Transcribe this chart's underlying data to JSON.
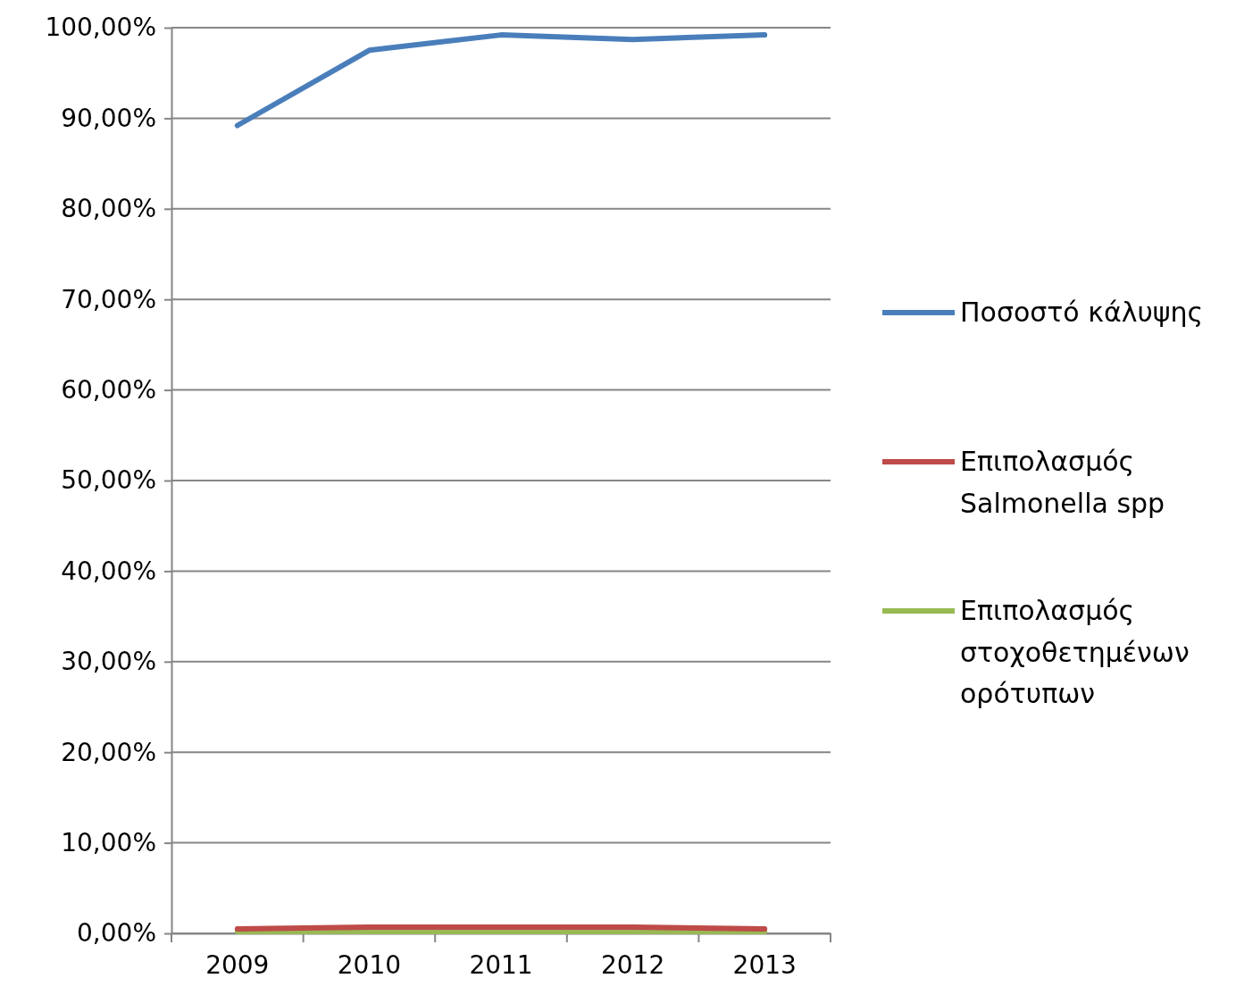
{
  "chart_data": {
    "type": "line",
    "categories": [
      "2009",
      "2010",
      "2011",
      "2012",
      "2013"
    ],
    "series": [
      {
        "name": "Ποσοστό κάλυψης",
        "color": "#4a7ebb",
        "values": [
          89.2,
          97.5,
          99.2,
          98.7,
          99.2
        ]
      },
      {
        "name": "Επιπολασμός Salmonella spp",
        "color": "#be4b48",
        "values": [
          0.5,
          0.7,
          0.7,
          0.7,
          0.5
        ]
      },
      {
        "name": "Επιπολασμός στοχοθετημένων ορότυπων",
        "color": "#98b954",
        "values": [
          0.2,
          0.2,
          0.2,
          0.2,
          0.2
        ]
      }
    ],
    "ylim": [
      0,
      100
    ],
    "yticks": [
      {
        "value": 0,
        "label": "0,00%"
      },
      {
        "value": 10,
        "label": "10,00%"
      },
      {
        "value": 20,
        "label": "20,00%"
      },
      {
        "value": 30,
        "label": "30,00%"
      },
      {
        "value": 40,
        "label": "40,00%"
      },
      {
        "value": 50,
        "label": "50,00%"
      },
      {
        "value": 60,
        "label": "60,00%"
      },
      {
        "value": 70,
        "label": "70,00%"
      },
      {
        "value": 80,
        "label": "80,00%"
      },
      {
        "value": 90,
        "label": "90,00%"
      },
      {
        "value": 100,
        "label": "100,00%"
      }
    ],
    "grid": "y",
    "legend": "right",
    "marker": "none",
    "line_style": "solid"
  }
}
